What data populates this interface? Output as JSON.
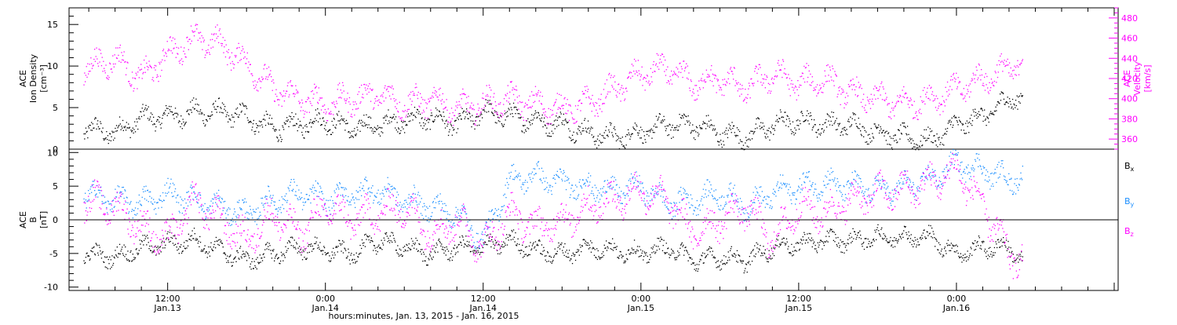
{
  "chart_data": [
    {
      "type": "scatter",
      "panel": "top",
      "ylabel_left": [
        "ACE",
        "Ion Density",
        "[cm⁻³]"
      ],
      "ylabel_right": [
        "ACE",
        "Velocity",
        "[km/s]"
      ],
      "ylim_left": [
        0,
        17
      ],
      "ylim_right": [
        350,
        490
      ],
      "yticks_left": [
        "0",
        "5",
        "10",
        "15"
      ],
      "yticks_right": [
        "360",
        "380",
        "400",
        "420",
        "440",
        "460",
        "480"
      ],
      "colors": {
        "density": "#000000",
        "velocity": "#ff00ff"
      },
      "series": [
        {
          "name": "",
          "axis": "left",
          "x_hours": [
            5.6,
            8,
            10,
            12,
            14,
            16,
            18,
            20,
            22,
            24,
            26,
            28,
            30,
            32,
            34,
            36,
            38,
            40,
            42,
            44,
            46,
            48,
            50,
            52,
            54,
            56,
            58,
            60,
            62,
            64,
            66,
            68,
            70,
            72,
            74,
            76,
            77
          ],
          "values": [
            2.5,
            2,
            3.8,
            4,
            4.5,
            4.5,
            4,
            2.5,
            3,
            3.5,
            2.5,
            3,
            3.5,
            3.8,
            3,
            4.5,
            4,
            3.5,
            3,
            2,
            1.5,
            2,
            3,
            3,
            2,
            1.5,
            3,
            3.5,
            3,
            3,
            2,
            1.5,
            1,
            3,
            4,
            6,
            6.5
          ]
        },
        {
          "name": "",
          "axis": "right",
          "x_hours": [
            5.6,
            8,
            10,
            12,
            14,
            16,
            18,
            20,
            22,
            24,
            26,
            28,
            30,
            32,
            34,
            36,
            38,
            40,
            42,
            44,
            46,
            48,
            50,
            52,
            54,
            56,
            58,
            60,
            62,
            64,
            66,
            68,
            70,
            72,
            74,
            76,
            77
          ],
          "values": [
            430,
            440,
            420,
            445,
            460,
            455,
            435,
            410,
            400,
            395,
            400,
            405,
            395,
            400,
            390,
            395,
            400,
            395,
            390,
            395,
            410,
            425,
            430,
            415,
            420,
            410,
            425,
            415,
            420,
            405,
            400,
            395,
            400,
            410,
            420,
            430,
            440
          ]
        }
      ]
    },
    {
      "type": "scatter",
      "panel": "bottom",
      "ylabel": [
        "ACE",
        "B",
        "[nT]"
      ],
      "ylim": [
        -10.5,
        10.5
      ],
      "yticks": [
        "-10",
        "-5",
        "0",
        "5",
        "10"
      ],
      "zero_line": true,
      "legend": [
        {
          "label": "B",
          "sub": "x",
          "color": "#000000"
        },
        {
          "label": "B",
          "sub": "y",
          "color": "#1e90ff"
        },
        {
          "label": "B",
          "sub": "z",
          "color": "#ff00ff"
        }
      ],
      "series": [
        {
          "name": "Bx",
          "x_hours": [
            5.6,
            8,
            10,
            12,
            14,
            16,
            18,
            20,
            22,
            24,
            26,
            28,
            30,
            32,
            34,
            36,
            38,
            40,
            42,
            44,
            46,
            48,
            50,
            52,
            54,
            56,
            58,
            60,
            62,
            64,
            66,
            68,
            70,
            72,
            74,
            76,
            77
          ],
          "values": [
            -5,
            -5.5,
            -4,
            -3.5,
            -3,
            -4.5,
            -6,
            -5,
            -4,
            -4.5,
            -5,
            -3,
            -4,
            -5,
            -4,
            -4,
            -3,
            -4.5,
            -5,
            -4,
            -4.5,
            -5,
            -4,
            -6,
            -5.5,
            -6,
            -4,
            -3.5,
            -3,
            -3,
            -2.5,
            -2.5,
            -2.5,
            -5,
            -4,
            -4,
            -6
          ]
        },
        {
          "name": "By",
          "x_hours": [
            5.6,
            8,
            10,
            12,
            14,
            16,
            18,
            20,
            22,
            24,
            26,
            28,
            30,
            32,
            34,
            36,
            38,
            40,
            42,
            44,
            46,
            48,
            50,
            52,
            54,
            56,
            58,
            60,
            62,
            64,
            66,
            68,
            70,
            72,
            74,
            76,
            77
          ],
          "values": [
            4,
            3,
            2.5,
            4,
            3,
            2,
            1,
            3,
            4,
            3,
            4,
            4.5,
            3,
            2,
            1,
            -3,
            6,
            6.5,
            5.5,
            5,
            4.5,
            5,
            2.5,
            3,
            4,
            2,
            4,
            5,
            5.5,
            5,
            4.5,
            5,
            6,
            8.5,
            7.5,
            6,
            6.5
          ]
        },
        {
          "name": "Bz",
          "x_hours": [
            5.6,
            8,
            10,
            12,
            14,
            16,
            18,
            20,
            22,
            24,
            26,
            28,
            30,
            32,
            34,
            36,
            38,
            40,
            42,
            44,
            46,
            48,
            50,
            52,
            54,
            56,
            58,
            60,
            62,
            64,
            66,
            68,
            70,
            72,
            74,
            76,
            77
          ],
          "values": [
            3,
            2,
            -1,
            -3,
            3,
            0,
            -3,
            1,
            -2,
            2,
            0,
            1,
            2,
            -2,
            0,
            -4,
            1,
            -1,
            0,
            2,
            3,
            4.5,
            3,
            -2,
            0,
            2,
            -3,
            2,
            1,
            3,
            4,
            4.5,
            5.5,
            7.5,
            2,
            -5,
            -6
          ]
        }
      ]
    }
  ],
  "time_axis": {
    "ticks": [
      {
        "hours": 12,
        "time": "12:00",
        "date": "Jan.13"
      },
      {
        "hours": 24,
        "time": "0:00",
        "date": "Jan.14"
      },
      {
        "hours": 36,
        "time": "12:00",
        "date": "Jan.14"
      },
      {
        "hours": 48,
        "time": "0:00",
        "date": "Jan.15"
      },
      {
        "hours": 60,
        "time": "12:00",
        "date": "Jan.15"
      },
      {
        "hours": 72,
        "time": "0:00",
        "date": "Jan.16"
      }
    ],
    "range_hours": [
      4.5,
      84.3
    ],
    "xlabel": "hours:minutes, Jan. 13, 2015 - Jan. 16, 2015"
  }
}
